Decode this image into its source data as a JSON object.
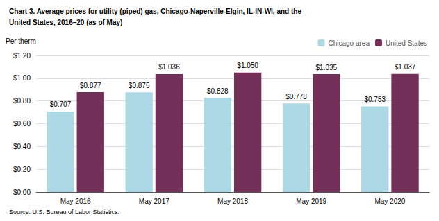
{
  "chart_data": {
    "type": "bar",
    "title": "Chart 3. Average prices for utility (piped) gas, Chicago-Naperville-Elgin, IL-IN-WI, and the",
    "subtitle": "United States, 2016–20 (as of May)",
    "ylabel": "Per therm",
    "annotations": [
      "Source: U.S. Bureau of Labor Statistics."
    ],
    "categories": [
      "May 2016",
      "May 2017",
      "May 2018",
      "May 2019",
      "May 2020"
    ],
    "series": [
      {
        "name": "Chicago area",
        "color": "#ADD8E6",
        "values": [
          0.707,
          0.875,
          0.828,
          0.778,
          0.753
        ],
        "value_labels": [
          "$0.707",
          "$0.875",
          "$0.828",
          "$0.778",
          "$0.753"
        ]
      },
      {
        "name": "United States",
        "color": "#722F57",
        "values": [
          0.877,
          1.036,
          1.05,
          1.035,
          1.037
        ],
        "value_labels": [
          "$0.877",
          "$1.036",
          "$1.050",
          "$1.035",
          "$1.037"
        ]
      }
    ],
    "ylim": [
      0,
      1.2
    ],
    "yticks": [
      {
        "value": 0.0,
        "label": "$0.00"
      },
      {
        "value": 0.2,
        "label": "$0.20"
      },
      {
        "value": 0.4,
        "label": "$0.40"
      },
      {
        "value": 0.6,
        "label": "$0.60"
      },
      {
        "value": 0.8,
        "label": "$0.80"
      },
      {
        "value": 1.0,
        "label": "$1.00"
      },
      {
        "value": 1.2,
        "label": "$1.20"
      }
    ],
    "grid": true,
    "legend": "upper right",
    "data_labels": true
  }
}
